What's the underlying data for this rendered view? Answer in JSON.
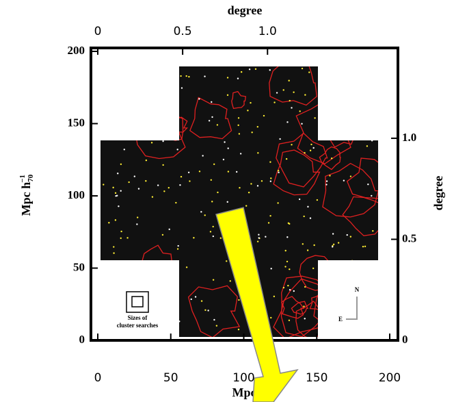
{
  "chart_data": {
    "type": "survey-map",
    "x_label": "Mpc",
    "x2_label": "degree",
    "y_label": "Mpc h",
    "y_label_sub": "70",
    "y_label_sup": "−1",
    "y2_label": "degree",
    "xlim": [
      0,
      200
    ],
    "xticks": [
      0,
      50,
      100,
      150,
      200
    ],
    "ylim": [
      0,
      200
    ],
    "yticks": [
      0,
      50,
      100,
      150,
      200
    ],
    "x2lim": [
      0,
      1.72
    ],
    "x2ticks": [
      0,
      0.5,
      {
        "value": 1,
        "label": "1.0"
      }
    ],
    "y2lim": [
      0,
      1.43
    ],
    "y2ticks": [
      {
        "value": 0,
        "label": "0"
      },
      0.5,
      {
        "value": 1,
        "label": "1.0"
      }
    ],
    "inset_label": [
      "Sizes of",
      "cluster searches"
    ],
    "compass": {
      "north": "N",
      "east": "E"
    }
  }
}
